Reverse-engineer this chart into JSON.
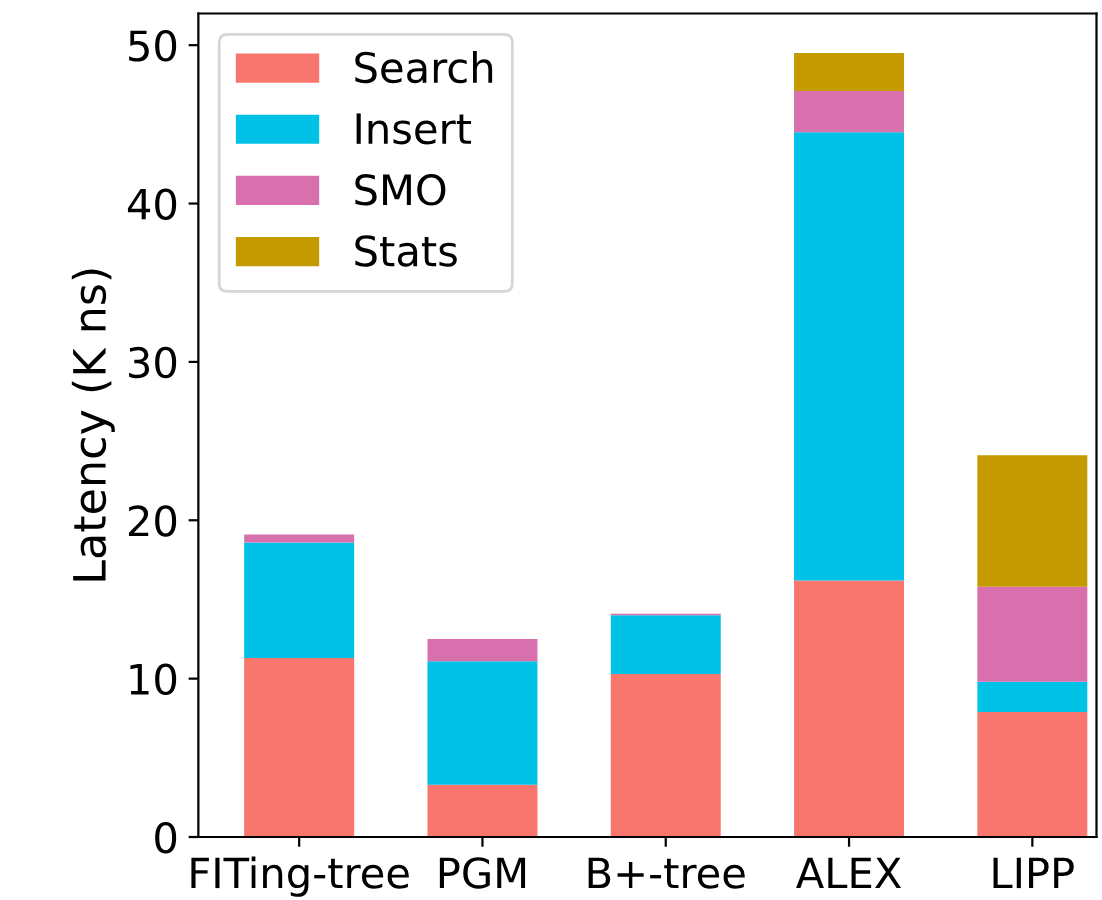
{
  "chart_data": {
    "type": "bar",
    "stacked": true,
    "ylabel": "Latency (K ns)",
    "categories": [
      "FITing-tree",
      "PGM",
      "B+-tree",
      "ALEX",
      "LIPP"
    ],
    "series": [
      {
        "name": "Search",
        "color": "#f8766d",
        "values": [
          11.3,
          3.3,
          10.3,
          16.2,
          7.9
        ]
      },
      {
        "name": "Insert",
        "color": "#00c1e6",
        "values": [
          7.3,
          7.8,
          3.7,
          28.3,
          1.9
        ]
      },
      {
        "name": "SMO",
        "color": "#d770ad",
        "values": [
          0.5,
          1.4,
          0.1,
          2.6,
          6.0
        ]
      },
      {
        "name": "Stats",
        "color": "#c49a00",
        "values": [
          0,
          0,
          0,
          2.4,
          8.3
        ]
      }
    ],
    "ylim": [
      0,
      52
    ],
    "yticks": [
      0,
      10,
      20,
      30,
      40,
      50
    ],
    "grid": false,
    "legend": "top left"
  }
}
